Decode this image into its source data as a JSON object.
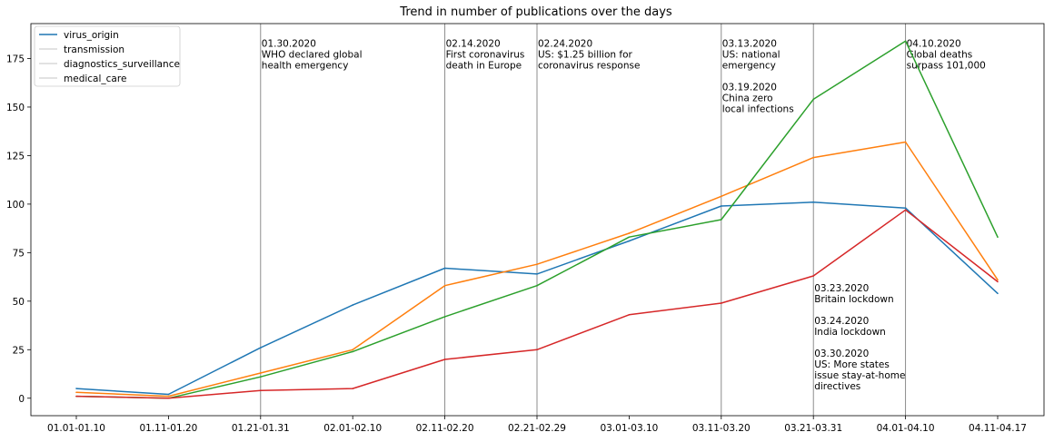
{
  "chart_data": {
    "type": "line",
    "title": "Trend in number of publications over the days",
    "xlabel": "",
    "ylabel": "",
    "categories": [
      "01.01-01.10",
      "01.11-01.20",
      "01.21-01.31",
      "02.01-02.10",
      "02.11-02.20",
      "02.21-02.29",
      "03.01-03.10",
      "03.11-03.20",
      "03.21-03.31",
      "04.01-04.10",
      "04.11-04.17"
    ],
    "ylim": [
      -9,
      193
    ],
    "yticks": [
      0,
      25,
      50,
      75,
      100,
      125,
      150,
      175
    ],
    "grid": false,
    "legend_position": "top-left",
    "series": [
      {
        "name": "virus_origin",
        "color": "#1f77b4",
        "values": [
          5,
          2,
          26,
          48,
          67,
          64,
          81,
          99,
          101,
          98,
          54
        ]
      },
      {
        "name": "transmission",
        "color": "#ff7f0e",
        "values": [
          3,
          1,
          13,
          25,
          58,
          69,
          85,
          104,
          124,
          132,
          61
        ]
      },
      {
        "name": "diagnostics_surveillance",
        "color": "#2ca02c",
        "values": [
          1,
          0,
          11,
          24,
          42,
          58,
          83,
          92,
          154,
          184,
          83
        ]
      },
      {
        "name": "medical_care",
        "color": "#d62728",
        "values": [
          1,
          0,
          4,
          5,
          20,
          25,
          43,
          49,
          63,
          97,
          60
        ]
      }
    ],
    "event_lines": [
      {
        "category": "01.21-01.31",
        "lines": [
          "01.30.2020",
          "WHO declared global",
          "health emergency"
        ],
        "anchor": "top"
      },
      {
        "category": "02.11-02.20",
        "lines": [
          "02.14.2020",
          "First coronavirus",
          "death in Europe"
        ],
        "anchor": "top"
      },
      {
        "category": "02.21-02.29",
        "lines": [
          "02.24.2020",
          "US: $1.25 billion for",
          "coronavirus response"
        ],
        "anchor": "top"
      },
      {
        "category": "03.11-03.20",
        "lines": [
          "03.13.2020",
          "US: national",
          "emergency",
          "",
          "03.19.2020",
          "China zero",
          "local infections"
        ],
        "anchor": "top"
      },
      {
        "category": "03.21-03.31",
        "lines": [
          "03.23.2020",
          "Britain lockdown",
          "",
          "03.24.2020",
          "India lockdown",
          "",
          "03.30.2020",
          "US: More states",
          "issue stay-at-home",
          "directives"
        ],
        "anchor": "bottom"
      },
      {
        "category": "04.01-04.10",
        "lines": [
          "04.10.2020",
          "Global deaths",
          "surpass 101,000"
        ],
        "anchor": "top"
      }
    ]
  }
}
